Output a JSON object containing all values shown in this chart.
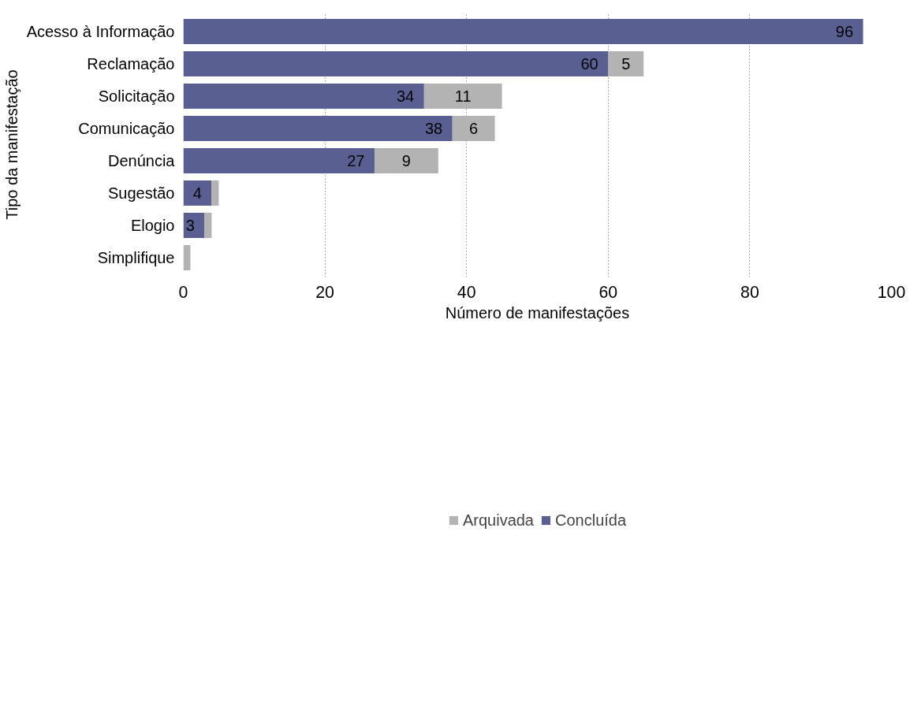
{
  "chart_data": {
    "type": "bar",
    "orientation": "horizontal",
    "stacked": true,
    "categories": [
      "Acesso à Informação",
      "Reclamação",
      "Solicitação",
      "Comunicação",
      "Denúncia",
      "Sugestão",
      "Elogio",
      "Simplifique"
    ],
    "series": [
      {
        "name": "Concluída",
        "color": "#5a5f92",
        "values": [
          96,
          60,
          34,
          38,
          27,
          4,
          3,
          0
        ],
        "value_labels": [
          "96",
          "60",
          "34",
          "38",
          "27",
          "4",
          "3",
          null
        ]
      },
      {
        "name": "Arquivada",
        "color": "#b3b3b3",
        "values": [
          0,
          5,
          11,
          6,
          9,
          1,
          1,
          1
        ],
        "value_labels": [
          null,
          "5",
          "11",
          "6",
          "9",
          null,
          null,
          null
        ]
      }
    ],
    "xlabel": "Número de manifestações",
    "ylabel": "Tipo da manifestação",
    "xlim": [
      0,
      100
    ],
    "xticks": [
      0,
      20,
      40,
      60,
      80,
      100
    ],
    "grid": "x",
    "legend": "bottom"
  }
}
